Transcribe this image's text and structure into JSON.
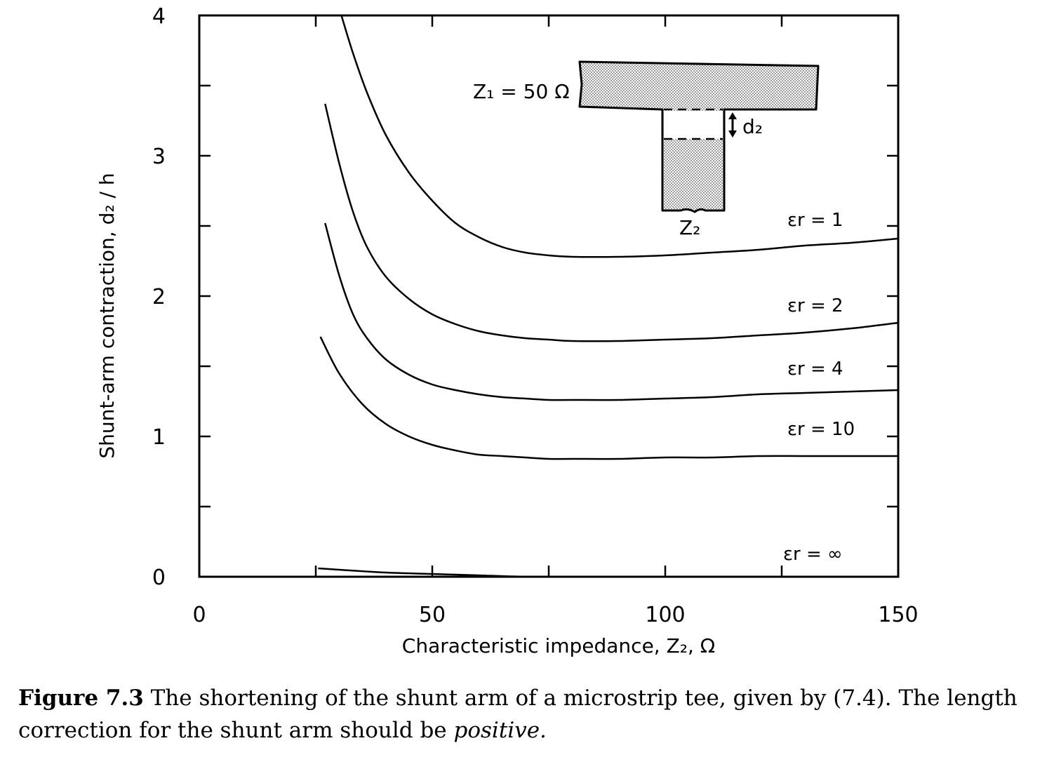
{
  "chart_data": {
    "type": "line",
    "xlabel": "Characteristic impedance, Z₂, Ω",
    "ylabel": "Shunt-arm contraction, d₂ / h",
    "xlim": [
      0,
      150
    ],
    "ylim": [
      0,
      4
    ],
    "x_ticks": [
      0,
      50,
      100,
      150
    ],
    "y_ticks": [
      0,
      1,
      2,
      3,
      4
    ],
    "grid": false,
    "series": [
      {
        "name": "εr = 1",
        "x": [
          30.5,
          33,
          36,
          40,
          45,
          50,
          55,
          60,
          65,
          70,
          75,
          80,
          90,
          100,
          110,
          120,
          130,
          140,
          150
        ],
        "y": [
          4.0,
          3.73,
          3.45,
          3.15,
          2.88,
          2.68,
          2.52,
          2.42,
          2.35,
          2.31,
          2.29,
          2.28,
          2.28,
          2.29,
          2.31,
          2.33,
          2.36,
          2.38,
          2.41
        ]
      },
      {
        "name": "εr = 2",
        "x": [
          27,
          30,
          33,
          36,
          40,
          45,
          50,
          55,
          60,
          65,
          70,
          75,
          80,
          90,
          100,
          110,
          120,
          130,
          140,
          150
        ],
        "y": [
          3.37,
          2.95,
          2.6,
          2.35,
          2.14,
          1.98,
          1.87,
          1.8,
          1.75,
          1.72,
          1.7,
          1.69,
          1.68,
          1.68,
          1.69,
          1.7,
          1.72,
          1.74,
          1.77,
          1.81
        ]
      },
      {
        "name": "εr = 4",
        "x": [
          27,
          30,
          33,
          36,
          40,
          45,
          50,
          55,
          60,
          65,
          70,
          75,
          80,
          90,
          100,
          110,
          120,
          130,
          140,
          150
        ],
        "y": [
          2.52,
          2.15,
          1.87,
          1.7,
          1.55,
          1.44,
          1.37,
          1.33,
          1.3,
          1.28,
          1.27,
          1.26,
          1.26,
          1.26,
          1.27,
          1.28,
          1.3,
          1.31,
          1.32,
          1.33
        ]
      },
      {
        "name": "εr = 10",
        "x": [
          26,
          30,
          35,
          40,
          45,
          50,
          55,
          60,
          65,
          70,
          75,
          80,
          90,
          100,
          110,
          120,
          130,
          140,
          150
        ],
        "y": [
          1.71,
          1.45,
          1.23,
          1.09,
          1.0,
          0.94,
          0.9,
          0.87,
          0.86,
          0.85,
          0.84,
          0.84,
          0.84,
          0.85,
          0.85,
          0.86,
          0.86,
          0.86,
          0.86
        ]
      },
      {
        "name": "εr = ∞",
        "x": [
          25.5,
          30,
          40,
          50,
          60,
          70,
          80,
          100,
          120,
          150
        ],
        "y": [
          0.06,
          0.05,
          0.03,
          0.02,
          0.01,
          0.0,
          0.0,
          0.0,
          0.0,
          0.0
        ]
      }
    ],
    "inset": {
      "z1_label": "Z₁ = 50 Ω",
      "d2_label": "d₂",
      "z2_label": "Z₂"
    }
  },
  "caption": {
    "lead": "Figure 7.3",
    "text": " The shortening of the shunt arm of a microstrip tee, given by (7.4). The length correction for the shunt arm should be ",
    "emph": "positive.",
    "tail": ""
  }
}
